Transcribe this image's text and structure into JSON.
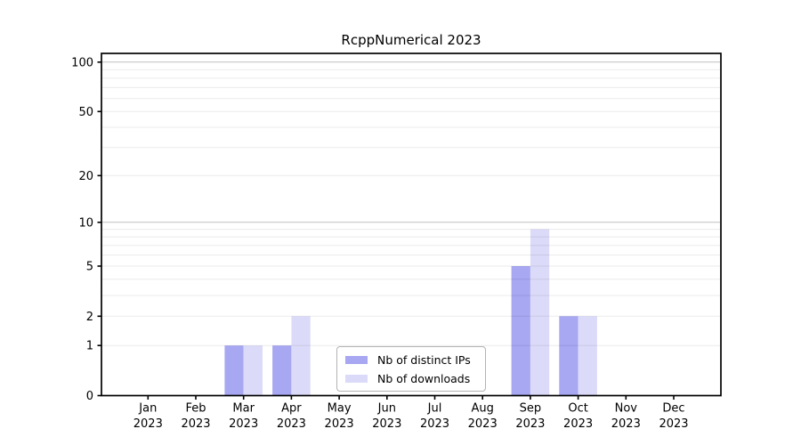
{
  "title": "RcppNumerical 2023",
  "chart_data": {
    "type": "bar",
    "title": "RcppNumerical 2023",
    "categories": [
      "Jan",
      "Feb",
      "Mar",
      "Apr",
      "May",
      "Jun",
      "Jul",
      "Aug",
      "Sep",
      "Oct",
      "Nov",
      "Dec"
    ],
    "year_label": "2023",
    "series": [
      {
        "name": "Nb of distinct IPs",
        "color": "#a7a7f2",
        "values": [
          0,
          0,
          1,
          1,
          0,
          0,
          0,
          0,
          5,
          2,
          0,
          0
        ]
      },
      {
        "name": "Nb of downloads",
        "color": "#dbdbf9",
        "values": [
          0,
          0,
          1,
          2,
          0,
          0,
          0,
          0,
          9,
          2,
          0,
          0
        ]
      }
    ],
    "xlabel": "",
    "ylabel": "",
    "yscale": "log1p",
    "ylim": [
      0,
      113
    ],
    "ytick_labels": [
      0,
      1,
      2,
      5,
      10,
      20,
      50,
      100
    ],
    "minor_gridlines": [
      1,
      2,
      3,
      4,
      5,
      6,
      7,
      8,
      9,
      20,
      30,
      40,
      50,
      60,
      70,
      80,
      90
    ],
    "major_gridlines": [
      10,
      100
    ],
    "grid": true,
    "legend_position": "lower center",
    "frame_color": "#000000",
    "minor_grid_color": "rgba(0,0,0,0.08)",
    "major_grid_color": "rgba(0,0,0,0.25)"
  }
}
